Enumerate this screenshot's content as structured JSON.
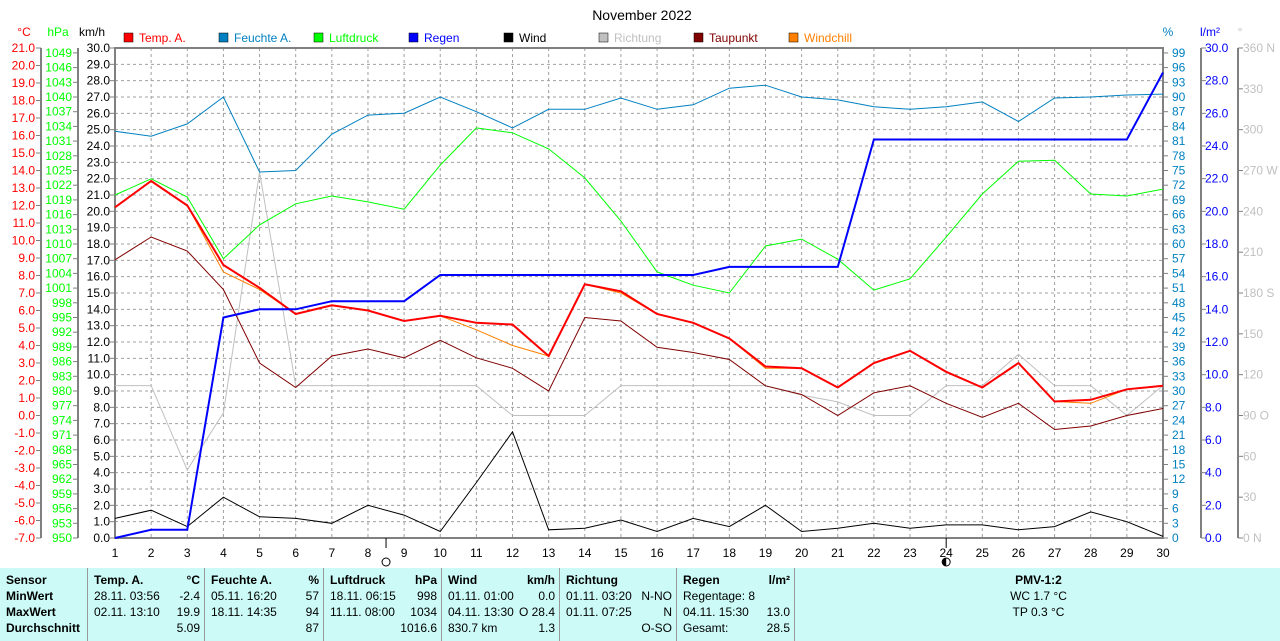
{
  "chart_data": {
    "type": "line",
    "title": "November 2022",
    "x": [
      1,
      2,
      3,
      4,
      5,
      6,
      7,
      8,
      9,
      10,
      11,
      12,
      13,
      14,
      15,
      16,
      17,
      18,
      19,
      20,
      21,
      22,
      23,
      24,
      25,
      26,
      27,
      28,
      29,
      30
    ],
    "xlim": [
      1,
      30
    ],
    "axes": {
      "temp": {
        "unit": "°C",
        "range": [
          -7,
          21
        ],
        "color": "#ff0000",
        "ticks": [
          "21.0",
          "20.0",
          "19.0",
          "18.0",
          "17.0",
          "16.0",
          "15.0",
          "14.0",
          "13.0",
          "12.0",
          "11.0",
          "10.0",
          "9.0",
          "8.0",
          "7.0",
          "6.0",
          "5.0",
          "4.0",
          "3.0",
          "2.0",
          "1.0",
          "0.0",
          "-1.0",
          "-2.0",
          "-3.0",
          "-4.0",
          "-5.0",
          "-6.0",
          "-7.0"
        ]
      },
      "pressure": {
        "unit": "hPa",
        "range": [
          950,
          1050
        ],
        "color": "#00ff00",
        "ticks": [
          "1049",
          "1046",
          "1043",
          "1040",
          "1037",
          "1034",
          "1031",
          "1028",
          "1025",
          "1022",
          "1019",
          "1016",
          "1013",
          "1010",
          "1007",
          "1004",
          "1001",
          "998",
          "995",
          "992",
          "989",
          "986",
          "983",
          "980",
          "977",
          "974",
          "971",
          "968",
          "965",
          "962",
          "959",
          "956",
          "953",
          "950"
        ]
      },
      "wind": {
        "unit": "km/h",
        "range": [
          0,
          30
        ],
        "color": "#000000",
        "ticks": [
          "30.0",
          "29.0",
          "28.0",
          "27.0",
          "26.0",
          "25.0",
          "24.0",
          "23.0",
          "22.0",
          "21.0",
          "20.0",
          "19.0",
          "18.0",
          "17.0",
          "16.0",
          "15.0",
          "14.0",
          "13.0",
          "12.0",
          "11.0",
          "10.0",
          "9.0",
          "8.0",
          "7.0",
          "6.0",
          "5.0",
          "4.0",
          "3.0",
          "2.0",
          "1.0",
          "0.0"
        ]
      },
      "humidity": {
        "unit": "%",
        "range": [
          0,
          100
        ],
        "color": "#0080c0",
        "ticks": [
          "99",
          "96",
          "93",
          "90",
          "87",
          "84",
          "81",
          "78",
          "75",
          "72",
          "69",
          "66",
          "63",
          "60",
          "57",
          "54",
          "51",
          "48",
          "45",
          "42",
          "39",
          "36",
          "33",
          "30",
          "27",
          "24",
          "21",
          "18",
          "15",
          "12",
          "9",
          "6",
          "3",
          "0"
        ]
      },
      "rain": {
        "unit": "l/m²",
        "range": [
          0,
          30
        ],
        "color": "#0000ff",
        "ticks": [
          "30.0",
          "28.0",
          "26.0",
          "24.0",
          "22.0",
          "20.0",
          "18.0",
          "16.0",
          "14.0",
          "12.0",
          "10.0",
          "8.0",
          "6.0",
          "4.0",
          "2.0",
          "0.0"
        ]
      },
      "direction": {
        "unit": "°",
        "range": [
          0,
          360
        ],
        "color": "#c0c0c0",
        "ticks": [
          "360 N",
          "330",
          "300",
          "270 W",
          "240",
          "210",
          "180 S",
          "150",
          "120",
          "90  O",
          "60",
          "30",
          "0   N"
        ]
      }
    },
    "series": [
      {
        "name": "Richtung",
        "axis": "direction",
        "color": "#c0c0c0",
        "values": [
          112,
          112,
          50,
          92,
          269,
          112,
          112,
          112,
          112,
          112,
          112,
          90,
          90,
          90,
          112,
          112,
          112,
          112,
          112,
          105,
          100,
          90,
          90,
          112,
          112,
          135,
          112,
          112,
          90,
          112
        ]
      },
      {
        "name": "Wind",
        "axis": "wind",
        "color": "#000000",
        "values": [
          1.2,
          1.7,
          0.7,
          2.5,
          1.3,
          1.2,
          0.9,
          2.0,
          1.4,
          0.4,
          3.4,
          6.5,
          0.5,
          0.6,
          1.1,
          0.4,
          1.2,
          0.7,
          2.0,
          0.4,
          0.6,
          0.9,
          0.6,
          0.8,
          0.8,
          0.5,
          0.7,
          1.6,
          1.0,
          0.1
        ]
      },
      {
        "name": "Luftdruck",
        "axis": "pressure",
        "color": "#00ff00",
        "values": [
          1020.0,
          1023.3,
          1019.6,
          1007.0,
          1013.9,
          1018.2,
          1019.8,
          1018.6,
          1017.1,
          1026.1,
          1033.7,
          1032.7,
          1029.4,
          1023.5,
          1014.7,
          1004.3,
          1001.6,
          1000.0,
          1009.6,
          1011.0,
          1006.9,
          1000.6,
          1002.9,
          1011.4,
          1020.2,
          1026.9,
          1027.1,
          1020.2,
          1019.8,
          1021.2
        ]
      },
      {
        "name": "Feuchte A.",
        "axis": "humidity",
        "color": "#0080c0",
        "values": [
          83,
          82,
          84.5,
          90,
          74.7,
          75,
          82.4,
          86.3,
          86.7,
          90,
          87,
          83.7,
          87.5,
          87.5,
          89.8,
          87.5,
          88.4,
          91.8,
          92.4,
          90,
          89.4,
          88,
          87.5,
          88,
          89,
          85,
          89.8,
          90,
          90.4,
          90.6
        ]
      },
      {
        "name": "Taupunkt",
        "axis": "temp",
        "color": "#800000",
        "values": [
          8.9,
          10.2,
          9.4,
          7.2,
          3.0,
          1.6,
          3.4,
          3.8,
          3.3,
          4.3,
          3.3,
          2.7,
          1.4,
          5.6,
          5.4,
          3.9,
          3.6,
          3.2,
          1.7,
          1.2,
          0.0,
          1.3,
          1.7,
          0.7,
          -0.1,
          0.7,
          -0.8,
          -0.6,
          0.0,
          0.4
        ]
      },
      {
        "name": "Windchill",
        "axis": "temp",
        "color": "#ff8000",
        "values": [
          11.9,
          13.4,
          12.0,
          8.2,
          7.2,
          5.8,
          6.3,
          6.0,
          5.4,
          5.7,
          4.9,
          4.0,
          3.4,
          7.5,
          7.0,
          5.8,
          5.3,
          4.4,
          2.7,
          2.7,
          1.6,
          3.0,
          3.7,
          2.5,
          1.6,
          3.0,
          0.8,
          0.7,
          1.5,
          1.7
        ]
      },
      {
        "name": "Temp. A.",
        "axis": "temp",
        "color": "#ff0000",
        "width": 2,
        "values": [
          11.9,
          13.4,
          12.0,
          8.6,
          7.3,
          5.8,
          6.3,
          6.0,
          5.4,
          5.7,
          5.3,
          5.2,
          3.4,
          7.5,
          7.1,
          5.8,
          5.3,
          4.4,
          2.8,
          2.7,
          1.6,
          3.0,
          3.7,
          2.5,
          1.6,
          3.0,
          0.8,
          0.9,
          1.5,
          1.7
        ]
      },
      {
        "name": "Regen",
        "axis": "rain",
        "color": "#0000ff",
        "width": 2,
        "values": [
          0.0,
          0.5,
          0.5,
          13.5,
          14.0,
          14.0,
          14.5,
          14.5,
          14.5,
          16.1,
          16.1,
          16.1,
          16.1,
          16.1,
          16.1,
          16.1,
          16.1,
          16.6,
          16.6,
          16.6,
          16.6,
          24.4,
          24.4,
          24.4,
          24.4,
          24.4,
          24.4,
          24.4,
          24.4,
          28.5
        ]
      }
    ],
    "legend": [
      {
        "label": "Temp. A.",
        "color": "#ff0000"
      },
      {
        "label": "Feuchte A.",
        "color": "#0080c0"
      },
      {
        "label": "Luftdruck",
        "color": "#00ff00"
      },
      {
        "label": "Regen",
        "color": "#0000ff"
      },
      {
        "label": "Wind",
        "color": "#000000"
      },
      {
        "label": "Richtung",
        "color": "#c0c0c0"
      },
      {
        "label": "Taupunkt",
        "color": "#800000"
      },
      {
        "label": "Windchill",
        "color": "#ff8000"
      }
    ],
    "legend_placement": "top",
    "moon_phases": [
      {
        "day": 8.5,
        "phase": "new-moon"
      },
      {
        "day": 24,
        "phase": "half-moon"
      }
    ],
    "grid": true
  },
  "table": {
    "sensor": {
      "header": "Sensor",
      "rows": [
        "MinWert",
        "MaxWert",
        "Durchschnitt"
      ]
    },
    "temp": {
      "header": "Temp. A.",
      "unit": "°C",
      "min_time": "28.11.  03:56",
      "min": "-2.4",
      "max_time": "02.11.  13:10",
      "max": "19.9",
      "avg": "5.09"
    },
    "humidity": {
      "header": "Feuchte A.",
      "unit": "%",
      "min_time": "05.11.  16:20",
      "min": "57",
      "max_time": "18.11.  14:35",
      "max": "94",
      "avg": "87"
    },
    "pressure": {
      "header": "Luftdruck",
      "unit": "hPa",
      "min_time": "18.11.  06:15",
      "min": "998",
      "max_time": "11.11.  08:00",
      "max": "1034",
      "avg": "1016.6"
    },
    "wind": {
      "header": "Wind",
      "unit": "km/h",
      "min_time": "01.11.  01:00",
      "min": "0.0",
      "max_time": "04.11.  13:30",
      "max": "O 28.4",
      "avg_label": "830.7 km",
      "avg": "1.3"
    },
    "direction": {
      "header": "Richtung",
      "min_time": "01.11.  03:20",
      "min": "N-NO",
      "max_time": "01.11.  07:25",
      "max": "N",
      "avg": "O-SO"
    },
    "rain": {
      "header": "Regen",
      "unit": "l/m²",
      "days": "Regentage: 8",
      "max_time": "04.11.  15:30",
      "max": "13.0",
      "total_label": "Gesamt:",
      "total": "28.5"
    },
    "pmv": {
      "header": "PMV-1:2",
      "wc": "WC 1.7 °C",
      "tp": "TP 0.3 °C"
    }
  }
}
